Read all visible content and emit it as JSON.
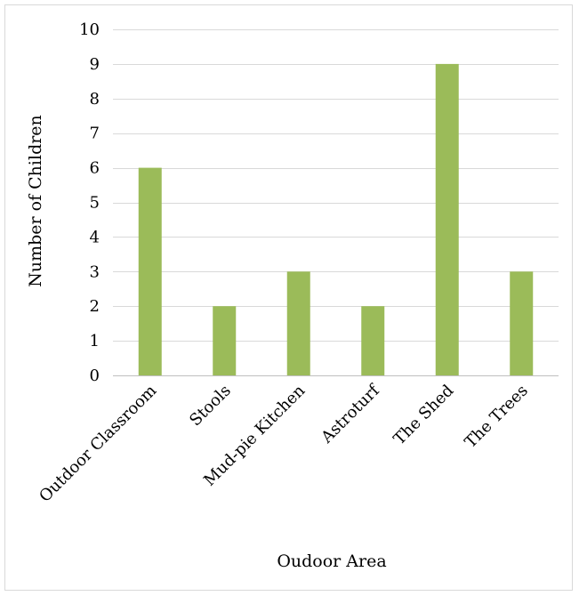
{
  "chart_data": {
    "type": "bar",
    "categories": [
      "Outdoor Classroom",
      "Stools",
      "Mud-pie Kitchen",
      "Astroturf",
      "The Shed",
      "The Trees"
    ],
    "values": [
      6,
      2,
      3,
      2,
      9,
      3
    ],
    "title": "",
    "xlabel": "Oudoor Area",
    "ylabel": "Number of Children",
    "ylim": [
      0,
      10
    ],
    "yticks": [
      0,
      1,
      2,
      3,
      4,
      5,
      6,
      7,
      8,
      9,
      10
    ],
    "grid": true,
    "legend": "none",
    "bar_color": "#9bbb59",
    "grid_color": "#d9d9d9"
  }
}
